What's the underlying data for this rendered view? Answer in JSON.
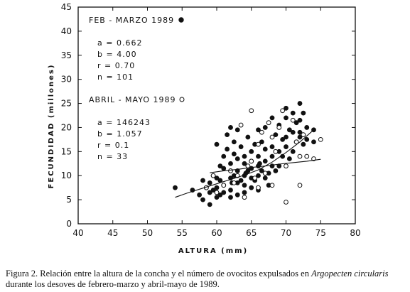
{
  "chart_data": {
    "type": "scatter",
    "xlabel": "ALTURA (mm)",
    "ylabel": "FECUNDIDAD (millones)",
    "xlim": [
      40,
      80
    ],
    "ylim": [
      0,
      45
    ],
    "xticks": [
      "40",
      "45",
      "50",
      "55",
      "60",
      "65",
      "70",
      "75",
      "80"
    ],
    "yticks": [
      "0",
      "5",
      "10",
      "15",
      "20",
      "25",
      "30",
      "35",
      "40",
      "45"
    ],
    "grid": false,
    "series": [
      {
        "name": "FEB - MARZO 1989",
        "marker": "filled-circle",
        "color": "#111111",
        "stats": [
          "a = 0.662",
          "b = 4.00",
          "r = 0.70",
          "n = 101"
        ],
        "x": [
          54,
          56.5,
          57.5,
          58,
          58,
          58.5,
          59,
          59,
          59,
          59.5,
          59.5,
          60,
          60,
          60,
          60,
          60.5,
          60.5,
          61,
          61,
          61,
          61,
          61.5,
          61.5,
          62,
          62,
          62,
          62,
          62,
          62.5,
          62.5,
          62.5,
          63,
          63,
          63,
          63,
          63,
          63.5,
          63.5,
          64,
          64,
          64,
          64,
          64,
          64.5,
          64.5,
          65,
          65,
          65,
          65,
          65,
          65.5,
          65.5,
          66,
          66,
          66,
          66,
          66,
          66.5,
          66.5,
          67,
          67,
          67,
          67,
          67.5,
          67.5,
          68,
          68,
          68,
          68,
          68.5,
          68.5,
          69,
          69,
          69,
          69.5,
          69.5,
          70,
          70,
          70,
          70,
          70.5,
          70.5,
          71,
          71,
          71,
          71.5,
          71.5,
          72,
          72,
          72,
          72,
          72.5,
          72.5,
          73,
          73,
          74,
          74,
          60.5,
          62.2,
          64.2,
          66.2
        ],
        "y": [
          7.5,
          7,
          6,
          5,
          9,
          7.5,
          4,
          6.5,
          8.5,
          10,
          7,
          5.5,
          7.5,
          9.5,
          16.5,
          12,
          6,
          6.5,
          11.5,
          14,
          8,
          18.5,
          15.5,
          7,
          9.5,
          12.5,
          20,
          5.5,
          14.5,
          10,
          17,
          6,
          8.5,
          11,
          13.5,
          19.5,
          16,
          9,
          10,
          12.5,
          14,
          6.5,
          8,
          18,
          11,
          7.5,
          9.5,
          11.5,
          13,
          15,
          16.5,
          9,
          12,
          14,
          19.5,
          7,
          10,
          17,
          11,
          9.5,
          13,
          20,
          15.5,
          10.5,
          8,
          12,
          16,
          22,
          14,
          18.5,
          11,
          15,
          20.5,
          12,
          14,
          17.5,
          16,
          18,
          22,
          24,
          13.5,
          19.5,
          15,
          19,
          23,
          17,
          21,
          18,
          21.5,
          25,
          19,
          16.5,
          23,
          20,
          17.5,
          19.5,
          17,
          9,
          8.5,
          10.5,
          12.5
        ]
      },
      {
        "name": "ABRIL - MAYO 1989",
        "marker": "open-circle",
        "color": "#111111",
        "stats": [
          "a = 146243",
          "b = 1.057",
          "r = 0.1",
          "n = 33"
        ],
        "x": [
          58.5,
          59.5,
          60,
          61,
          62,
          62.5,
          63,
          63.5,
          64,
          64.5,
          65,
          65,
          65.5,
          66,
          66,
          66.5,
          67,
          67.5,
          68,
          68,
          68.5,
          69,
          69.5,
          70,
          70,
          71,
          71.5,
          72,
          72,
          72.5,
          73,
          74,
          75
        ],
        "y": [
          7.5,
          10,
          6.5,
          8,
          11,
          8.5,
          10,
          20.5,
          5.5,
          12,
          13,
          23.5,
          9.5,
          7.5,
          16.5,
          19,
          10.5,
          21,
          8,
          18,
          15,
          20,
          23.5,
          4.5,
          12,
          21.5,
          17,
          14,
          8,
          18.5,
          14,
          13.5,
          17.5
        ]
      }
    ],
    "fitted_curves": [
      {
        "series": "FEB - MARZO 1989",
        "x": [
          54,
          56,
          58,
          60,
          62,
          64,
          66,
          68,
          70,
          72,
          74
        ],
        "y": [
          5.5,
          6.5,
          7.4,
          8.3,
          9.2,
          10.1,
          11.2,
          12.8,
          14.8,
          17.0,
          19.5
        ]
      },
      {
        "series": "ABRIL - MAYO 1989",
        "x": [
          59,
          61,
          63,
          65,
          67,
          69,
          71,
          73,
          75
        ],
        "y": [
          10.6,
          11.0,
          11.3,
          11.7,
          12.0,
          12.4,
          12.7,
          13.0,
          13.4
        ]
      }
    ]
  },
  "caption": {
    "prefix": "Figura 2. Relación entre la altura de la concha y el número de ovocitos expulsados en ",
    "species": "Argopecten circularis",
    "suffix": " durante los desoves de febrero-marzo y abril-mayo de 1989."
  }
}
